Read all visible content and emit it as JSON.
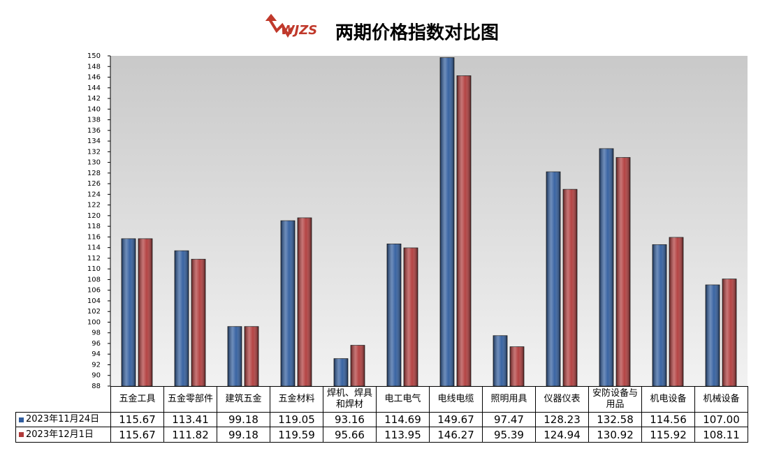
{
  "chart_data": {
    "type": "bar",
    "title": "两期价格指数对比图",
    "logo": "WJZS",
    "categories": [
      "五金工具",
      "五金零部件",
      "建筑五金",
      "五金材料",
      "焊机、焊具和焊材",
      "电工电气",
      "电线电缆",
      "照明用具",
      "仪器仪表",
      "安防设备与用品",
      "机电设备",
      "机械设备"
    ],
    "series": [
      {
        "name": "2023年11月24日",
        "color": "#2f5c9e",
        "values": [
          115.67,
          113.41,
          99.18,
          119.05,
          93.16,
          114.69,
          149.67,
          97.47,
          128.23,
          132.58,
          114.56,
          107.0
        ],
        "value_labels": [
          "115.67",
          "113.41",
          "99.18",
          "119.05",
          "93.16",
          "114.69",
          "149.67",
          "97.47",
          "128.23",
          "132.58",
          "114.56",
          "107.00"
        ]
      },
      {
        "name": "2023年12月1日",
        "color": "#b03a3a",
        "values": [
          115.67,
          111.82,
          99.18,
          119.59,
          95.66,
          113.95,
          146.27,
          95.39,
          124.94,
          130.92,
          115.92,
          108.11
        ],
        "value_labels": [
          "115.67",
          "111.82",
          "99.18",
          "119.59",
          "95.66",
          "113.95",
          "146.27",
          "95.39",
          "124.94",
          "130.92",
          "115.92",
          "108.11"
        ]
      }
    ],
    "ylim": [
      88,
      150
    ],
    "yticks": [
      88,
      90,
      92,
      94,
      96,
      98,
      100,
      102,
      104,
      106,
      108,
      110,
      112,
      114,
      116,
      118,
      120,
      122,
      124,
      126,
      128,
      130,
      132,
      134,
      136,
      138,
      140,
      142,
      144,
      146,
      148,
      150
    ],
    "grid": false
  }
}
